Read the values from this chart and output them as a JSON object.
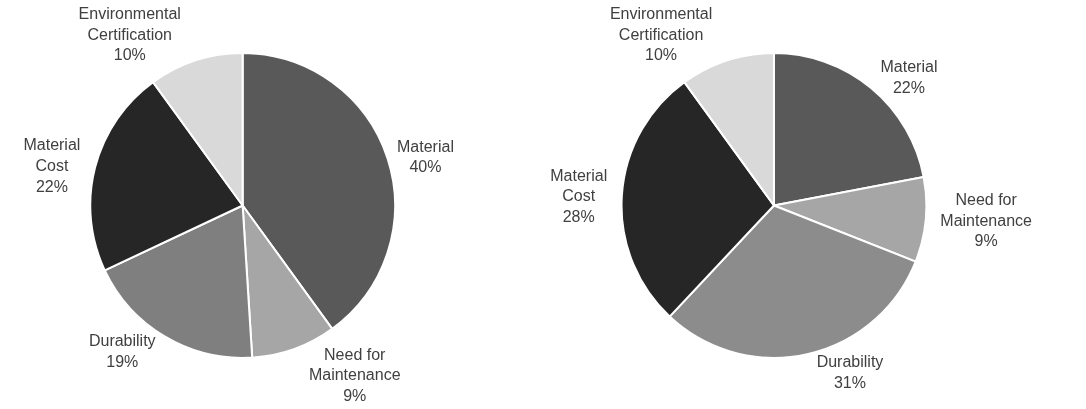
{
  "chart_data": [
    {
      "type": "pie",
      "categories": [
        "Material",
        "Need for Maintenance",
        "Durability",
        "Material Cost",
        "Environmental Certification"
      ],
      "values": [
        40,
        9,
        19,
        22,
        10
      ],
      "value_labels": [
        "40%",
        "9%",
        "19%",
        "22%",
        "10%"
      ],
      "colors": [
        "#595959",
        "#a6a6a6",
        "#7f7f7f",
        "#262626",
        "#d9d9d9"
      ],
      "legend": false
    },
    {
      "type": "pie",
      "categories": [
        "Material",
        "Need for Maintenance",
        "Durability",
        "Material Cost",
        "Environmental Certification"
      ],
      "values": [
        22,
        9,
        31,
        28,
        10
      ],
      "value_labels": [
        "22%",
        "9%",
        "31%",
        "28%",
        "10%"
      ],
      "colors": [
        "#595959",
        "#a6a6a6",
        "#8c8c8c",
        "#262626",
        "#d9d9d9"
      ],
      "legend": false
    }
  ]
}
